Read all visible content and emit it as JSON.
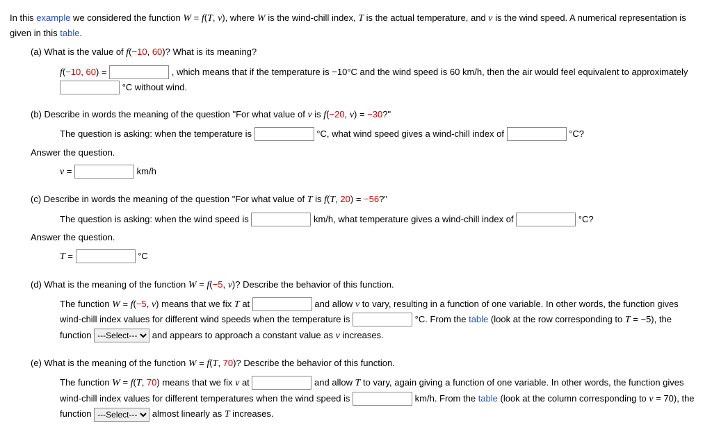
{
  "intro_p1": "In this ",
  "intro_link1": "example",
  "intro_p2": " we considered the function ",
  "intro_eq": "W = f(T, v)",
  "intro_p3": ", where ",
  "intro_p4": " is the wind-chill index, ",
  "intro_p5": " is the actual temperature, and ",
  "intro_p6": " is the wind speed. A numerical representation is given in this ",
  "intro_link2": "table",
  "intro_p7": ".",
  "a_q1": "(a) What is the value of ",
  "a_q2": "? What is its meaning?",
  "a_fcall_f": "f",
  "a_fcall_open": "(",
  "a_fcall_arg1": "−10",
  "a_fcall_comma": ", ",
  "a_fcall_arg2": "60",
  "a_fcall_close": ")",
  "a_line1_pre": " = ",
  "a_line1_mid": " , which means that if the temperature is −10°C and the wind speed is 60 km/h, then the air would feel equivalent to approximately ",
  "a_line1_post": " °C without wind.",
  "b_q1": "(b) Describe in words the meaning of the question \"For what value of ",
  "b_q2": " is ",
  "b_fcall_arg1": "−20",
  "b_fcall_arg2": "v",
  "b_q3": " = ",
  "b_q4": "−30",
  "b_q5": "?\"",
  "b_line1_pre": "The question is asking: when the temperature is ",
  "b_line1_mid": " °C, what wind speed gives a wind-chill index of ",
  "b_line1_post": " °C?",
  "b_ans_label": "Answer the question.",
  "b_v_label": " = ",
  "b_v_unit": " km/h",
  "c_q1": "(c) Describe in words the meaning of the question \"For what value of ",
  "c_q2": " is ",
  "c_fcall_arg1": "T",
  "c_fcall_arg2": "20",
  "c_q3": " = ",
  "c_q4": "−56",
  "c_q5": "?\"",
  "c_line1_pre": "The question is asking: when the wind speed is ",
  "c_line1_mid": " km/h, what temperature gives a wind-chill index of ",
  "c_line1_post": " °C?",
  "c_ans_label": "Answer the question.",
  "c_T_label": " = ",
  "c_T_unit": " °C",
  "d_q1": "(d) What is the meaning of the function ",
  "d_q2": "? Describe the behavior of this function.",
  "d_fcall_arg1": "−5",
  "d_fcall_arg2": "v",
  "d_line1_pre": "The function ",
  "d_line1_mid1": " means that we fix ",
  "d_line1_mid2": " at ",
  "d_line1_mid3": " and allow ",
  "d_line1_mid4": " to vary, resulting in a function of one variable. In other words, the function gives wind-chill index values for different wind speeds when the temperature is ",
  "d_line1_mid5": " °C. From the ",
  "d_link": "table",
  "d_line2_pre": " (look at the row corresponding to ",
  "d_line2_mid": " = −5), the function ",
  "d_select_opt": "---Select---",
  "d_line2_post": " and appears to approach a constant value as ",
  "d_line2_end": " increases.",
  "e_q1": "(e) What is the meaning of the function ",
  "e_q2": "? Describe the behavior of this function.",
  "e_fcall_arg1": "T",
  "e_fcall_arg2": "70",
  "e_line1_pre": "The function ",
  "e_line1_mid1": " means that we fix ",
  "e_line1_mid2": " at ",
  "e_line1_mid3": " and allow ",
  "e_line1_mid4": " to vary, again giving a function of one variable. In other words, the function gives wind-chill index values for different temperatures when the wind speed is ",
  "e_line1_mid5": " km/h. From the ",
  "e_link": "table",
  "e_line2_pre": " (look at the column corresponding to ",
  "e_line2_mid": " = 70), the function ",
  "e_select_opt": "---Select---",
  "e_line2_post": " almost linearly as ",
  "e_line2_end": " increases.",
  "sym_W": "W",
  "sym_T": "T",
  "sym_v": "v",
  "sym_f": "f",
  "sym_eq": " = "
}
